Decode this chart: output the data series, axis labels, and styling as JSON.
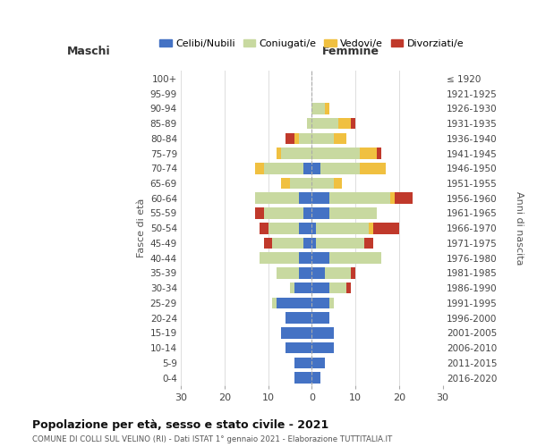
{
  "age_groups": [
    "0-4",
    "5-9",
    "10-14",
    "15-19",
    "20-24",
    "25-29",
    "30-34",
    "35-39",
    "40-44",
    "45-49",
    "50-54",
    "55-59",
    "60-64",
    "65-69",
    "70-74",
    "75-79",
    "80-84",
    "85-89",
    "90-94",
    "95-99",
    "100+"
  ],
  "birth_years": [
    "2016-2020",
    "2011-2015",
    "2006-2010",
    "2001-2005",
    "1996-2000",
    "1991-1995",
    "1986-1990",
    "1981-1985",
    "1976-1980",
    "1971-1975",
    "1966-1970",
    "1961-1965",
    "1956-1960",
    "1951-1955",
    "1946-1950",
    "1941-1945",
    "1936-1940",
    "1931-1935",
    "1926-1930",
    "1921-1925",
    "≤ 1920"
  ],
  "male": {
    "celibi": [
      4,
      4,
      6,
      7,
      6,
      8,
      4,
      3,
      3,
      2,
      3,
      2,
      3,
      0,
      2,
      0,
      0,
      0,
      0,
      0,
      0
    ],
    "coniugati": [
      0,
      0,
      0,
      0,
      0,
      1,
      1,
      5,
      9,
      7,
      7,
      9,
      10,
      5,
      9,
      7,
      3,
      1,
      0,
      0,
      0
    ],
    "vedovi": [
      0,
      0,
      0,
      0,
      0,
      0,
      0,
      0,
      0,
      0,
      0,
      0,
      0,
      2,
      2,
      1,
      1,
      0,
      0,
      0,
      0
    ],
    "divorziati": [
      0,
      0,
      0,
      0,
      0,
      0,
      0,
      0,
      0,
      2,
      2,
      2,
      0,
      0,
      0,
      0,
      2,
      0,
      0,
      0,
      0
    ]
  },
  "female": {
    "nubili": [
      2,
      3,
      5,
      5,
      4,
      4,
      4,
      3,
      4,
      1,
      1,
      4,
      4,
      0,
      2,
      0,
      0,
      0,
      0,
      0,
      0
    ],
    "coniugate": [
      0,
      0,
      0,
      0,
      0,
      1,
      4,
      6,
      12,
      11,
      12,
      11,
      14,
      5,
      9,
      11,
      5,
      6,
      3,
      0,
      0
    ],
    "vedove": [
      0,
      0,
      0,
      0,
      0,
      0,
      0,
      0,
      0,
      0,
      1,
      0,
      1,
      2,
      6,
      4,
      3,
      3,
      1,
      0,
      0
    ],
    "divorziate": [
      0,
      0,
      0,
      0,
      0,
      0,
      1,
      1,
      0,
      2,
      6,
      0,
      4,
      0,
      0,
      1,
      0,
      1,
      0,
      0,
      0
    ]
  },
  "colors": {
    "celibi_nubili": "#4472c4",
    "coniugati": "#c8d9a0",
    "vedovi": "#f0c040",
    "divorziati": "#c0392b"
  },
  "title": "Popolazione per età, sesso e stato civile - 2021",
  "subtitle": "COMUNE DI COLLI SUL VELINO (RI) - Dati ISTAT 1° gennaio 2021 - Elaborazione TUTTITALIA.IT",
  "ylabel": "Fasce di età",
  "right_ylabel": "Anni di nascita",
  "xlim": 30,
  "legend_labels": [
    "Celibi/Nubili",
    "Coniugati/e",
    "Vedovi/e",
    "Divorziati/e"
  ],
  "maschi_label": "Maschi",
  "femmine_label": "Femmine",
  "bg_color": "#ffffff",
  "grid_color": "#dddddd"
}
